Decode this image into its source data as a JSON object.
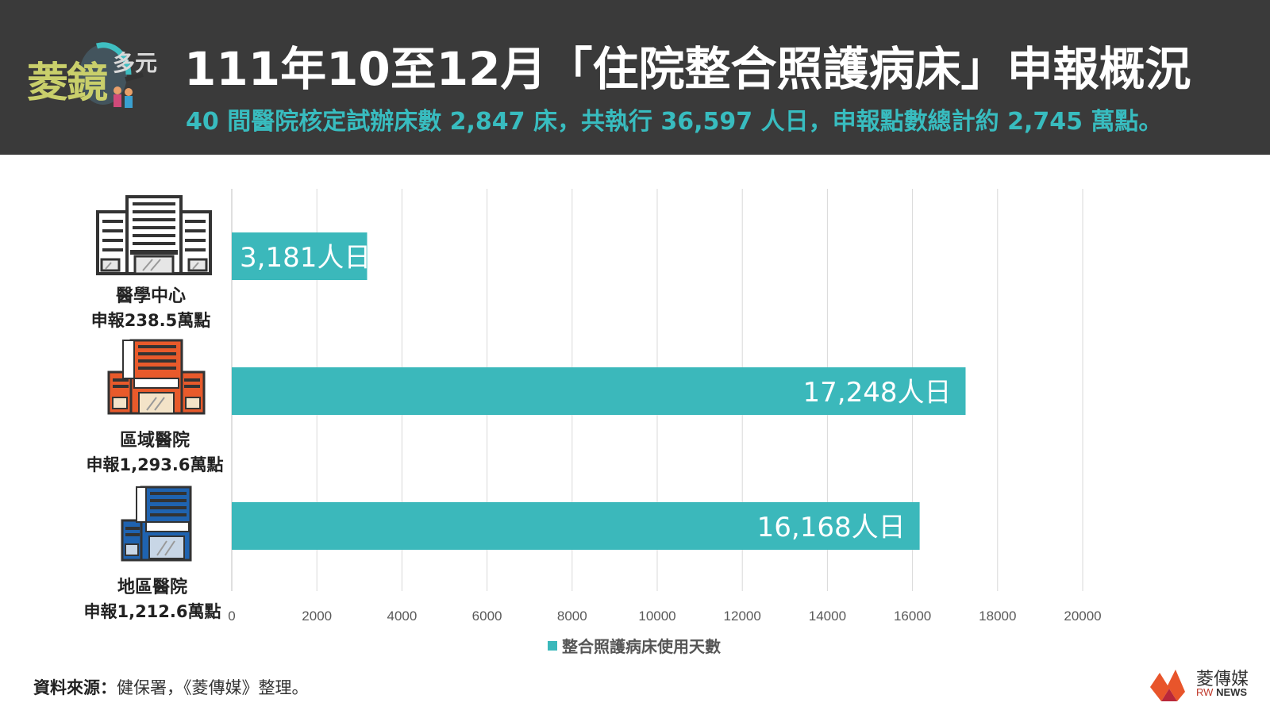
{
  "header": {
    "logo_text_main": "菱鏡",
    "logo_text_sub": "多元",
    "title": "111年10至12月「住院整合照護病床」申報概況",
    "subtitle": "40 間醫院核定試辦床數 2,847 床，共執行 36,597 人日，申報點數總計約 2,745 萬點。"
  },
  "categories": [
    {
      "name": "醫學中心",
      "claim": "申報238.5萬點",
      "icon": "medical-center-building-icon"
    },
    {
      "name": "區域醫院",
      "claim": "申報1,293.6萬點",
      "icon": "regional-hospital-building-icon"
    },
    {
      "name": "地區醫院",
      "claim": "申報1,212.6萬點",
      "icon": "district-hospital-building-icon"
    }
  ],
  "chart_data": {
    "type": "bar",
    "orientation": "horizontal",
    "categories": [
      "醫學中心",
      "區域醫院",
      "地區醫院"
    ],
    "series": [
      {
        "name": "整合照護病床使用天數",
        "values": [
          3181,
          17248,
          16168
        ],
        "data_labels": [
          "3,181人日",
          "17,248人日",
          "16,168人日"
        ],
        "color": "#3bb8bb"
      }
    ],
    "x_ticks": [
      "0",
      "2000",
      "4000",
      "6000",
      "8000",
      "10000",
      "12000",
      "14000",
      "16000",
      "18000",
      "20000"
    ],
    "xlim": [
      0,
      20000
    ],
    "grid": true,
    "legend": "bottom"
  },
  "source": {
    "label": "資料來源：",
    "text": "健保署，《菱傳媒》整理。"
  },
  "brand": {
    "name": "菱傳媒",
    "en_prefix": "RW",
    "en_suffix": "NEWS"
  },
  "colors": {
    "header_bg": "#3a3a3a",
    "accent": "#38bcbf",
    "bar": "#3bb8bb",
    "medical_center": "#333333",
    "regional": "#e85a2b",
    "district": "#1f63b0"
  }
}
